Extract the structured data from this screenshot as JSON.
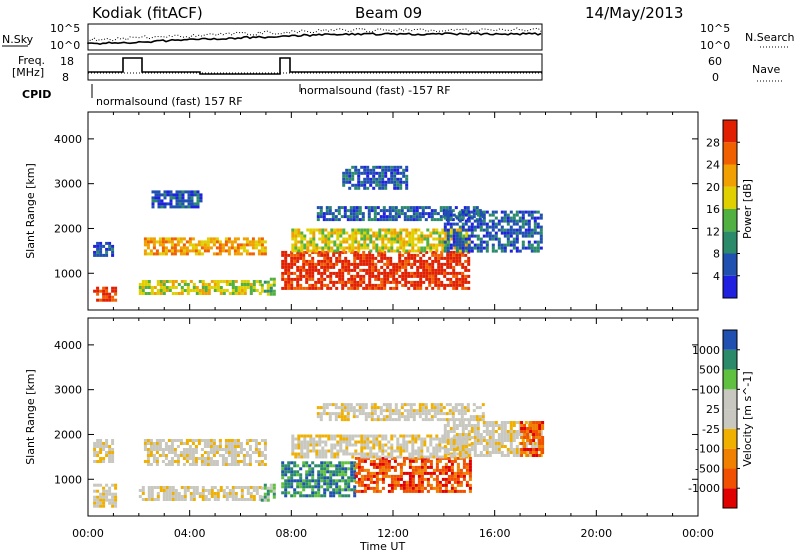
{
  "header": {
    "station": "Kodiak (fitACF)",
    "beam": "Beam 09",
    "date": "14/May/2013"
  },
  "top_panel": {
    "nsky_label": "N.Sky",
    "nsky_ticks": [
      "10^5",
      "10^0"
    ],
    "nsearch_ticks": [
      "10^5",
      "10^0"
    ],
    "nsearch_label": "N.Search",
    "freq_label_line1": "Freq.",
    "freq_label_line2": "[MHz]",
    "freq_ticks": [
      "18",
      "8"
    ],
    "nave_ticks": [
      "60",
      "0"
    ],
    "nave_label": "Nave",
    "cpid_label": "CPID",
    "cpid_text_1": "normalsound (fast) 157 RF",
    "cpid_text_2": "normalsound (fast) -157 RF"
  },
  "chart_data": [
    {
      "type": "heatmap",
      "title": "",
      "xlabel": "",
      "ylabel": "Slant Range [km]",
      "x_ticks": [
        "00:00",
        "04:00",
        "08:00",
        "12:00",
        "16:00",
        "20:00",
        "00:00"
      ],
      "xlim_hours": [
        0,
        24
      ],
      "ylim": [
        180,
        4600
      ],
      "y_ticks": [
        1000,
        2000,
        3000,
        4000
      ],
      "colorbar": {
        "label": "Power [dB]",
        "ticks": [
          "28",
          "24",
          "20",
          "16",
          "12",
          "8",
          "4"
        ],
        "colors": [
          "#2020e0",
          "#2050b0",
          "#2a8a6a",
          "#50b040",
          "#e0d000",
          "#f0a000",
          "#f06000",
          "#e02000"
        ]
      },
      "bands": [
        {
          "t0": 0.2,
          "t1": 1.1,
          "r0": 380,
          "r1": 700,
          "level": 7
        },
        {
          "t0": 0.2,
          "t1": 1.0,
          "r0": 1380,
          "r1": 1700,
          "level": 1
        },
        {
          "t0": 2.0,
          "t1": 6.8,
          "r0": 550,
          "r1": 850,
          "level": 4
        },
        {
          "t0": 2.2,
          "t1": 7.0,
          "r0": 1400,
          "r1": 1800,
          "level": 5
        },
        {
          "t0": 2.5,
          "t1": 4.5,
          "r0": 2500,
          "r1": 2850,
          "level": 1
        },
        {
          "t0": 6.8,
          "t1": 7.3,
          "r0": 550,
          "r1": 900,
          "level": 3
        },
        {
          "t0": 7.6,
          "t1": 15.0,
          "r0": 650,
          "r1": 1500,
          "level": 7
        },
        {
          "t0": 8.0,
          "t1": 15.0,
          "r0": 1500,
          "r1": 2000,
          "level": 4
        },
        {
          "t0": 9.0,
          "t1": 15.5,
          "r0": 2200,
          "r1": 2500,
          "level": 1
        },
        {
          "t0": 14.0,
          "t1": 17.8,
          "r0": 1500,
          "r1": 2400,
          "level": 1
        },
        {
          "t0": 10.0,
          "t1": 12.5,
          "r0": 2900,
          "r1": 3400,
          "level": 1
        }
      ]
    },
    {
      "type": "heatmap",
      "title": "",
      "xlabel": "Time UT",
      "ylabel": "Slant Range [km]",
      "x_ticks": [
        "00:00",
        "04:00",
        "08:00",
        "12:00",
        "16:00",
        "20:00",
        "00:00"
      ],
      "xlim_hours": [
        0,
        24
      ],
      "ylim": [
        180,
        4600
      ],
      "y_ticks": [
        1000,
        2000,
        3000,
        4000
      ],
      "colorbar": {
        "label": "Velocity [m s^-1]",
        "ticks": [
          "1000",
          "500",
          "100",
          "25",
          "-25",
          "-100",
          "-500",
          "-1000"
        ],
        "colors": [
          "#e00000",
          "#f05000",
          "#f08000",
          "#f0b000",
          "#c8c8c0",
          "#c8c8c0",
          "#60c040",
          "#2a8a6a",
          "#2050b0"
        ]
      },
      "bands": [
        {
          "t0": 0.2,
          "t1": 1.1,
          "r0": 380,
          "r1": 900,
          "level": 4
        },
        {
          "t0": 0.2,
          "t1": 1.0,
          "r0": 1380,
          "r1": 1900,
          "level": 4
        },
        {
          "t0": 2.0,
          "t1": 6.8,
          "r0": 550,
          "r1": 850,
          "level": 4
        },
        {
          "t0": 2.2,
          "t1": 7.0,
          "r0": 1300,
          "r1": 1900,
          "level": 4
        },
        {
          "t0": 6.8,
          "t1": 7.3,
          "r0": 550,
          "r1": 900,
          "level": 6
        },
        {
          "t0": 7.6,
          "t1": 10.5,
          "r0": 650,
          "r1": 1400,
          "level": 7
        },
        {
          "t0": 10.5,
          "t1": 15.0,
          "r0": 700,
          "r1": 1500,
          "level": 1
        },
        {
          "t0": 8.0,
          "t1": 15.0,
          "r0": 1500,
          "r1": 2000,
          "level": 4
        },
        {
          "t0": 9.0,
          "t1": 15.5,
          "r0": 2300,
          "r1": 2700,
          "level": 4
        },
        {
          "t0": 14.0,
          "t1": 17.8,
          "r0": 1500,
          "r1": 2300,
          "level": 4
        },
        {
          "t0": 17.0,
          "t1": 17.9,
          "r0": 1500,
          "r1": 2300,
          "level": 1
        }
      ]
    }
  ]
}
